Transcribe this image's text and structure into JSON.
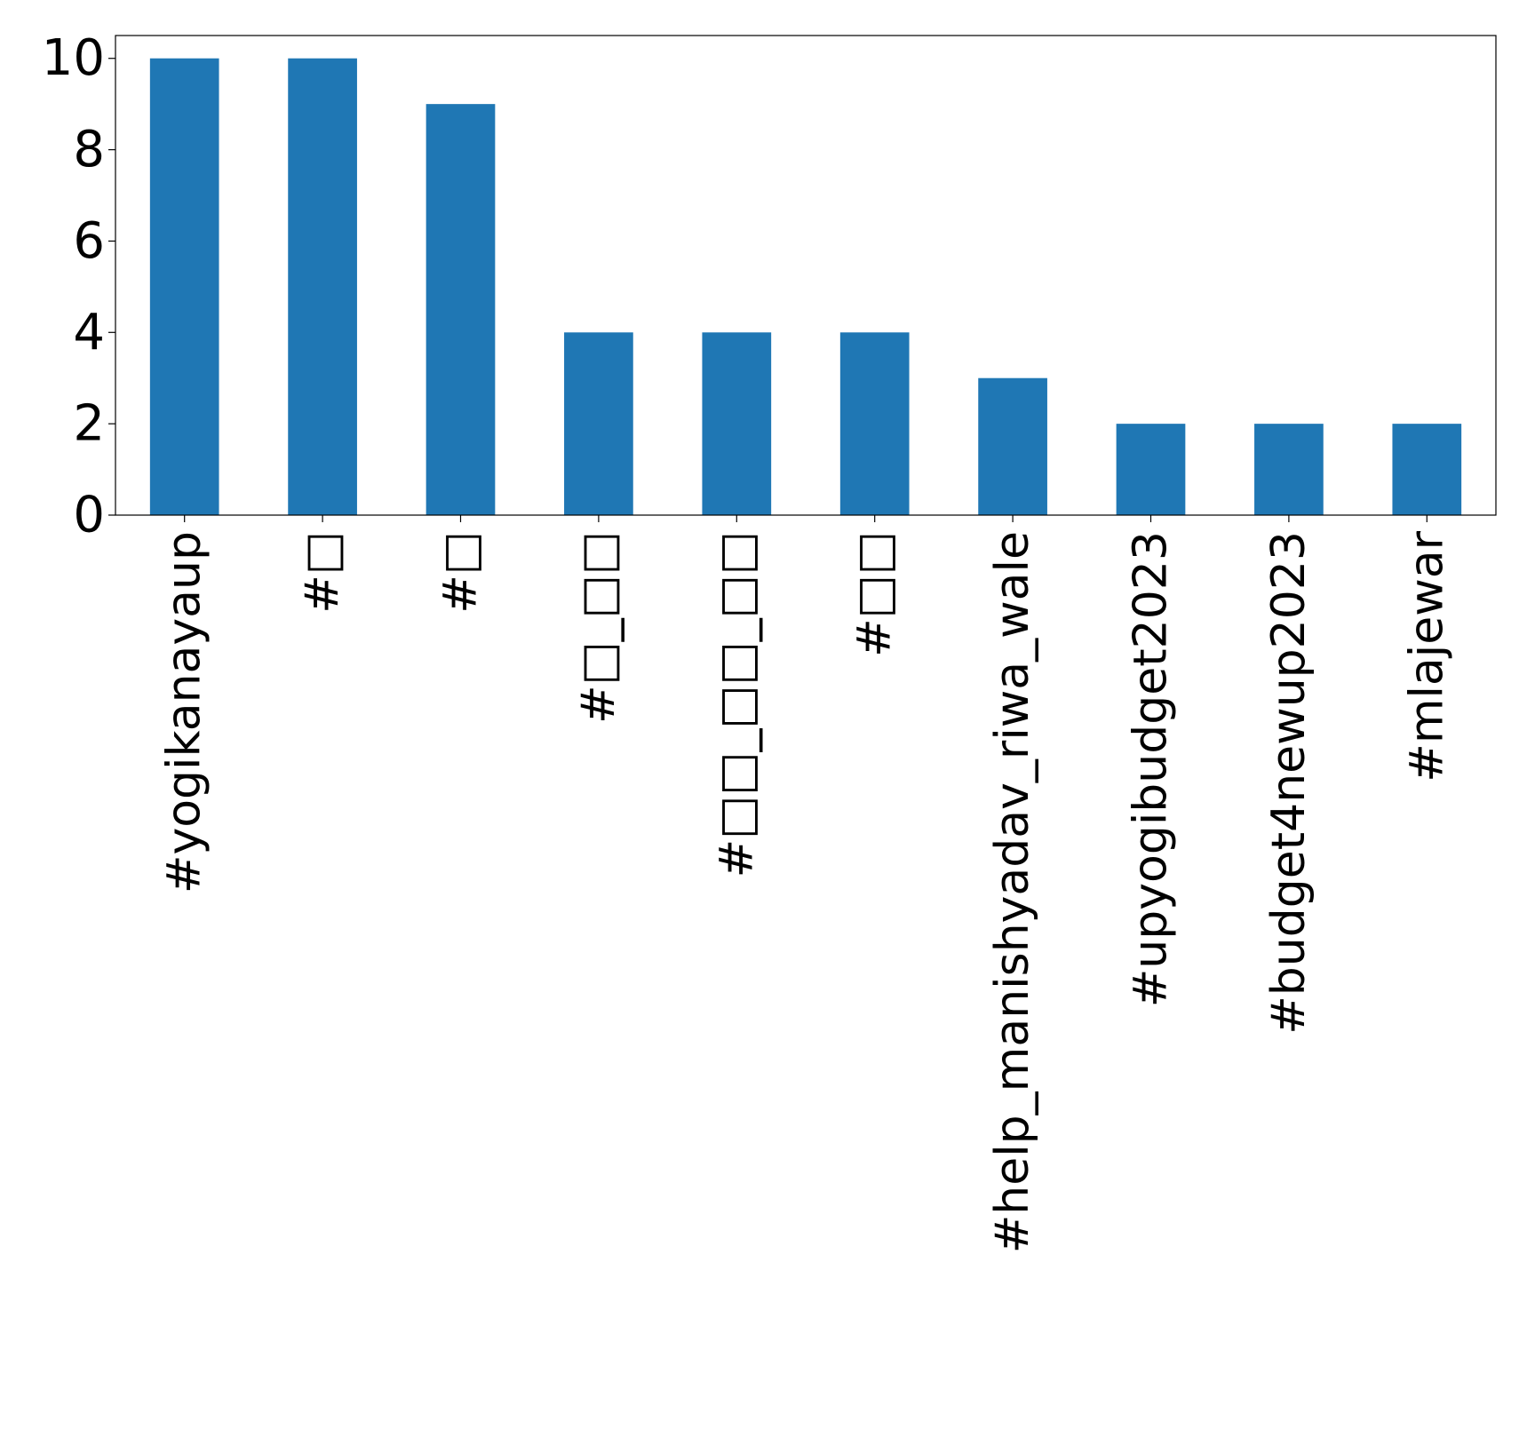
{
  "chart_data": {
    "type": "bar",
    "title": "",
    "xlabel": "",
    "ylabel": "",
    "categories": [
      "#yogikanayaup",
      "#□",
      "#□",
      "#□_□□",
      "#□□_□□_□□",
      "#□□",
      "#help_manishyadav_riwa_wale",
      "#upyogibudget2023",
      "#budget4newup2023",
      "#mlajewar"
    ],
    "values": [
      10,
      10,
      9,
      4,
      4,
      4,
      3,
      2,
      2,
      2
    ],
    "ylim": [
      0,
      10.5
    ],
    "yticks": [
      "0",
      "2",
      "4",
      "6",
      "8",
      "10"
    ],
    "bar_color": "#1f77b4",
    "grid": false,
    "legend": "none"
  }
}
